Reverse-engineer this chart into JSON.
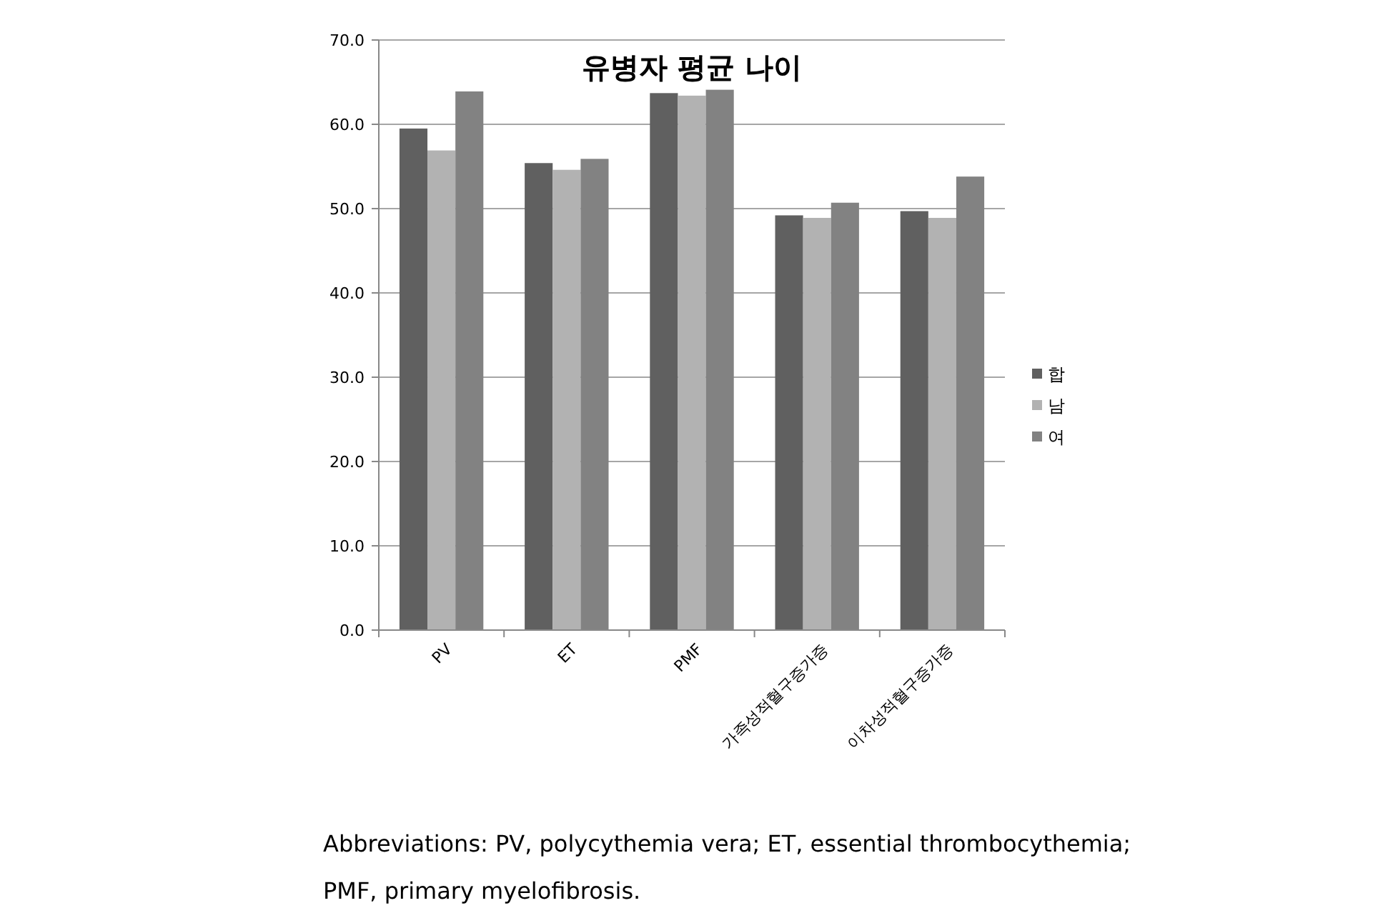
{
  "chart_data": {
    "type": "bar",
    "title": "유병자 평균 나이",
    "categories": [
      "PV",
      "ET",
      "PMF",
      "가족성적혈구증가증",
      "이차성적혈구증가증"
    ],
    "series": [
      {
        "name": "합",
        "color": "#606060",
        "values": [
          59.5,
          55.4,
          63.7,
          49.2,
          49.7
        ]
      },
      {
        "name": "남",
        "color": "#b2b2b2",
        "values": [
          56.9,
          54.6,
          63.4,
          48.9,
          48.9
        ]
      },
      {
        "name": "여",
        "color": "#828282",
        "values": [
          63.9,
          55.9,
          64.1,
          50.7,
          53.8
        ]
      }
    ],
    "ylim": [
      0,
      70
    ],
    "yticks": [
      {
        "value": 0,
        "label": "0.0"
      },
      {
        "value": 10,
        "label": "10.0"
      },
      {
        "value": 20,
        "label": "20.0"
      },
      {
        "value": 30,
        "label": "30.0"
      },
      {
        "value": 40,
        "label": "40.0"
      },
      {
        "value": 50,
        "label": "50.0"
      },
      {
        "value": 60,
        "label": "60.0"
      },
      {
        "value": 70,
        "label": "70.0"
      }
    ],
    "grid": "y",
    "legend": "right",
    "annotations": [
      "Abbreviations: PV, polycythemia vera; ET, essential thrombocythemia;",
      "PMF, primary  myelofibrosis."
    ]
  }
}
